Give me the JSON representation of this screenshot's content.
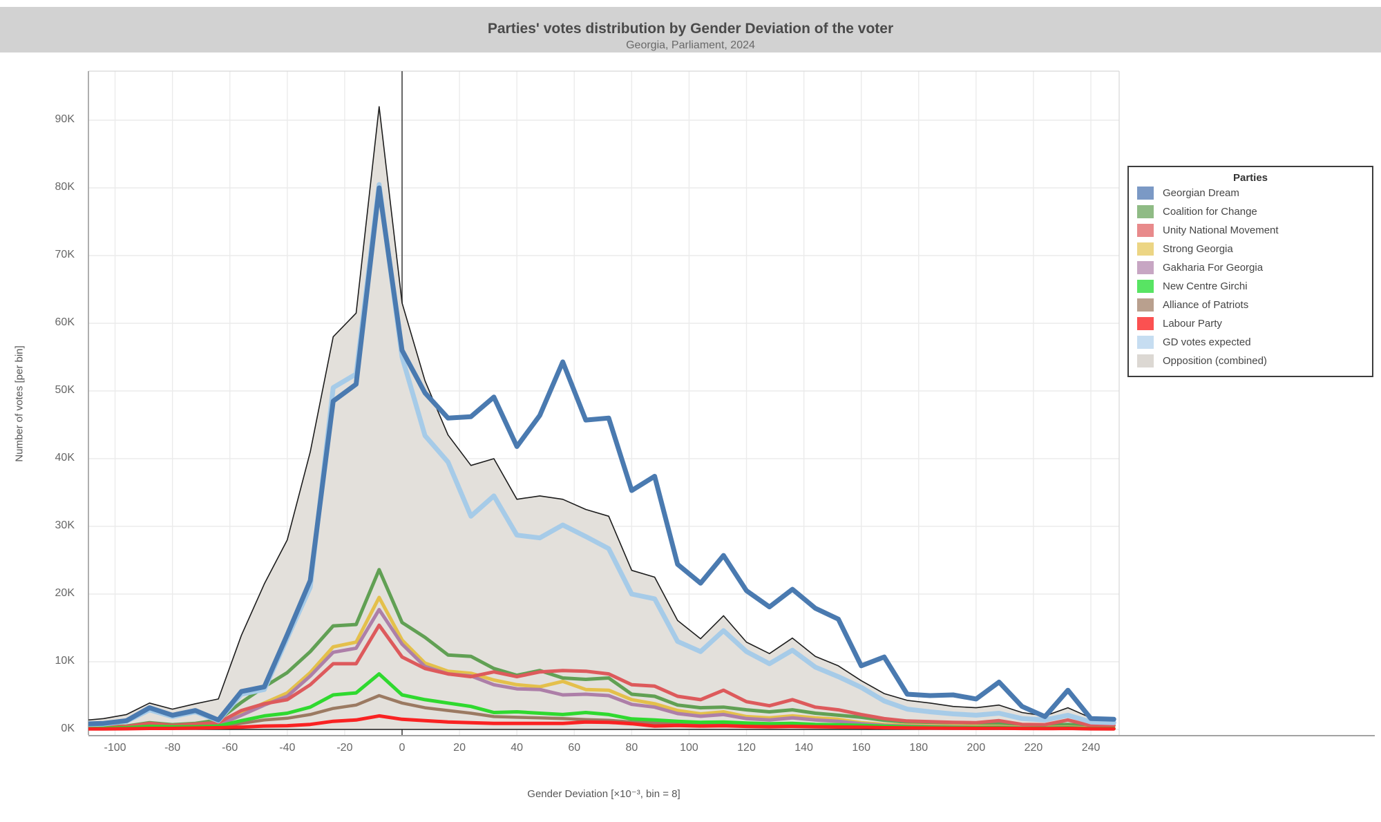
{
  "chart_data": {
    "type": "line",
    "title": "Parties' votes distribution by Gender Deviation of the voter",
    "subtitle": "Georgia, Parliament, 2024",
    "xlabel": "Gender Deviation [×10⁻³, bin = 8]",
    "ylabel": "Number of votes [per bin]",
    "xlim": [
      -116,
      252
    ],
    "ylim": [
      0,
      97
    ],
    "grid": true,
    "legend_position": "right",
    "x_ticks": [
      -100,
      -80,
      -60,
      -40,
      -20,
      0,
      20,
      40,
      60,
      80,
      100,
      120,
      140,
      160,
      180,
      200,
      220,
      240
    ],
    "y_ticks": [
      0,
      10,
      20,
      30,
      40,
      50,
      60,
      70,
      80,
      90
    ],
    "y_tick_suffix": "K",
    "zero_line_x": 0,
    "bins": [
      -112,
      -104,
      -96,
      -88,
      -80,
      -72,
      -64,
      -56,
      -48,
      -40,
      -32,
      -24,
      -16,
      -8,
      0,
      8,
      16,
      24,
      32,
      40,
      48,
      56,
      64,
      72,
      80,
      88,
      96,
      104,
      112,
      120,
      128,
      136,
      144,
      152,
      160,
      168,
      176,
      184,
      192,
      200,
      208,
      216,
      224,
      232,
      240,
      248
    ],
    "units": "thousands of votes",
    "series": [
      {
        "id": "opposition",
        "name": "Opposition (combined)",
        "kind": "area",
        "color": "#e3e0db",
        "stroke": "#1c1c1c",
        "width": 1.6,
        "values": [
          1.3,
          1.6,
          2.2,
          3.9,
          3,
          3.8,
          4.5,
          13.9,
          21.5,
          28,
          41,
          58,
          61.5,
          92,
          63,
          51.5,
          43.5,
          39,
          40,
          34,
          34.5,
          34,
          32.5,
          31.5,
          23.5,
          22.5,
          16.1,
          13.4,
          16.8,
          12.9,
          11.2,
          13.5,
          10.8,
          9.4,
          7.2,
          5.3,
          4.3,
          3.9,
          3.4,
          3.2,
          3.6,
          2.5,
          2,
          3.2,
          1.7,
          1.6
        ]
      },
      {
        "id": "coalition_for_change",
        "name": "Coalition for Change",
        "kind": "line",
        "color": "#61a054",
        "width": 5,
        "values": [
          0.35,
          0.4,
          0.5,
          1,
          0.7,
          0.9,
          1.4,
          4,
          6.3,
          8.4,
          11.5,
          15.3,
          15.5,
          23.6,
          15.8,
          13.6,
          11,
          10.8,
          9,
          8,
          8.7,
          7.6,
          7.4,
          7.6,
          5.2,
          4.9,
          3.6,
          3.2,
          3.3,
          2.9,
          2.6,
          2.9,
          2.4,
          2.1,
          1.8,
          1.35,
          1.1,
          1.05,
          1,
          0.95,
          0.9,
          0.65,
          0.6,
          0.75,
          0.5,
          0.55
        ]
      },
      {
        "id": "strong_georgia",
        "name": "Strong Georgia",
        "kind": "line",
        "color": "#e4c04b",
        "width": 5,
        "values": [
          0.2,
          0.25,
          0.35,
          0.6,
          0.5,
          0.6,
          0.75,
          2.4,
          3.9,
          5.4,
          8.4,
          12.2,
          12.9,
          19.5,
          13.2,
          9.8,
          8.6,
          8.3,
          7.3,
          6.6,
          6.3,
          7.1,
          5.9,
          5.8,
          4.4,
          3.8,
          2.8,
          2.3,
          2.6,
          1.9,
          1.7,
          2,
          1.7,
          1.5,
          1,
          0.75,
          0.62,
          0.55,
          0.5,
          0.45,
          0.45,
          0.28,
          0.28,
          0.35,
          0.2,
          0.18
        ]
      },
      {
        "id": "gakharia_for_georgia",
        "name": "Gakharia For Georgia",
        "kind": "line",
        "color": "#ad7fa8",
        "width": 5,
        "values": [
          0.18,
          0.22,
          0.3,
          0.5,
          0.45,
          0.55,
          0.65,
          2.1,
          3.6,
          4.9,
          7.9,
          11.4,
          12,
          17.7,
          12.6,
          9.3,
          8.2,
          7.9,
          6.6,
          6,
          5.9,
          5.1,
          5.2,
          5,
          3.7,
          3.3,
          2.35,
          1.95,
          2.2,
          1.6,
          1.4,
          1.7,
          1.4,
          1.2,
          0.85,
          0.6,
          0.5,
          0.43,
          0.38,
          0.34,
          0.35,
          0.22,
          0.22,
          0.28,
          0.15,
          0.13
        ]
      },
      {
        "id": "unity_national_movement",
        "name": "Unity National Movement",
        "kind": "line",
        "color": "#dd5a5c",
        "width": 5,
        "values": [
          0.25,
          0.3,
          0.45,
          0.9,
          0.6,
          0.8,
          1,
          2.8,
          3.8,
          4.4,
          6.6,
          9.7,
          9.7,
          15.4,
          10.7,
          9,
          8.2,
          7.8,
          8.5,
          7.8,
          8.5,
          8.7,
          8.6,
          8.2,
          6.6,
          6.4,
          4.9,
          4.4,
          5.8,
          4.1,
          3.5,
          4.4,
          3.3,
          2.9,
          2.2,
          1.6,
          1.25,
          1.15,
          1.05,
          1,
          1.3,
          0.75,
          0.7,
          1.4,
          0.55,
          0.6
        ]
      },
      {
        "id": "alliance_of_patriots",
        "name": "Alliance of Patriots",
        "kind": "line",
        "color": "#9b7a62",
        "width": 4.5,
        "values": [
          0.12,
          0.15,
          0.2,
          0.3,
          0.3,
          0.3,
          0.38,
          0.9,
          1.4,
          1.65,
          2.2,
          3.1,
          3.6,
          5,
          3.9,
          3.2,
          2.8,
          2.4,
          1.9,
          1.8,
          1.7,
          1.6,
          1.45,
          1.35,
          1.1,
          0.95,
          0.8,
          0.68,
          0.75,
          0.6,
          0.55,
          0.6,
          0.5,
          0.45,
          0.4,
          0.3,
          0.26,
          0.23,
          0.2,
          0.18,
          0.18,
          0.12,
          0.12,
          0.14,
          0.09,
          0.08
        ]
      },
      {
        "id": "new_centre_girchi",
        "name": "New Centre Girchi",
        "kind": "line",
        "color": "#2fd92f",
        "width": 5,
        "values": [
          0.15,
          0.2,
          0.25,
          0.45,
          0.4,
          0.4,
          0.5,
          1.3,
          2,
          2.4,
          3.3,
          5.1,
          5.4,
          8.2,
          5.1,
          4.4,
          3.9,
          3.4,
          2.5,
          2.6,
          2.4,
          2.2,
          2.5,
          2.2,
          1.55,
          1.4,
          1.2,
          1.05,
          1.1,
          0.95,
          0.85,
          0.9,
          0.75,
          0.68,
          0.6,
          0.47,
          0.4,
          0.35,
          0.3,
          0.28,
          0.28,
          0.18,
          0.19,
          0.23,
          0.13,
          0.12
        ]
      },
      {
        "id": "labour_party",
        "name": "Labour Party",
        "kind": "line",
        "color": "#f92222",
        "width": 5,
        "values": [
          0.08,
          0.08,
          0.1,
          0.15,
          0.15,
          0.2,
          0.25,
          0.35,
          0.5,
          0.55,
          0.75,
          1.2,
          1.4,
          2,
          1.5,
          1.3,
          1.1,
          1,
          0.9,
          0.9,
          0.9,
          0.9,
          1.1,
          1.05,
          0.85,
          0.5,
          0.58,
          0.5,
          0.55,
          0.45,
          0.4,
          0.45,
          0.4,
          0.36,
          0.33,
          0.26,
          0.23,
          0.2,
          0.18,
          0.16,
          0.18,
          0.14,
          0.12,
          0.15,
          0.09,
          0.08
        ]
      },
      {
        "id": "gd_votes_expected",
        "name": "GD votes expected",
        "kind": "line",
        "color": "#a6cbe8",
        "width": 7,
        "values": [
          0.7,
          0.8,
          1.2,
          2.9,
          1.9,
          2.6,
          1.3,
          5.2,
          5.9,
          13.5,
          21,
          50.5,
          52.5,
          80.5,
          55,
          43.4,
          39.5,
          31.5,
          34.5,
          28.7,
          28.3,
          30.2,
          28.5,
          26.7,
          20,
          19.3,
          13,
          11.5,
          14.6,
          11.5,
          9.7,
          11.7,
          9.2,
          7.8,
          6.2,
          4.2,
          3,
          2.6,
          2.3,
          2.1,
          2.4,
          1.6,
          1.4,
          2.1,
          1.1,
          1
        ]
      },
      {
        "id": "georgian_dream",
        "name": "Georgian Dream",
        "kind": "line",
        "color": "#4a7ab0",
        "width": 7,
        "values": [
          0.8,
          0.9,
          1.3,
          3.2,
          2.1,
          2.8,
          1.4,
          5.6,
          6.3,
          14,
          22,
          48.5,
          51,
          80,
          56,
          49.7,
          46,
          46.2,
          49.1,
          41.8,
          46.4,
          54.3,
          45.7,
          46,
          35.3,
          37.4,
          24.4,
          21.6,
          25.7,
          20.5,
          18.1,
          20.7,
          17.9,
          16.3,
          9.4,
          10.7,
          5.2,
          5,
          5.1,
          4.5,
          7,
          3.4,
          1.9,
          5.8,
          1.6,
          1.5
        ]
      }
    ],
    "legend": {
      "title": "Parties",
      "items": [
        {
          "label": "Georgian Dream",
          "series": "georgian_dream",
          "swatch": "#7b99c5"
        },
        {
          "label": "Coalition for Change",
          "series": "coalition_for_change",
          "swatch": "#8fbb85"
        },
        {
          "label": "Unity National Movement",
          "series": "unity_national_movement",
          "swatch": "#e88a8b"
        },
        {
          "label": "Strong Georgia",
          "series": "strong_georgia",
          "swatch": "#ecd584"
        },
        {
          "label": "Gakharia For Georgia",
          "series": "gakharia_for_georgia",
          "swatch": "#c7a6c3"
        },
        {
          "label": "New Centre Girchi",
          "series": "new_centre_girchi",
          "swatch": "#58e463"
        },
        {
          "label": "Alliance of Patriots",
          "series": "alliance_of_patriots",
          "swatch": "#b9a08e"
        },
        {
          "label": "Labour Party",
          "series": "labour_party",
          "swatch": "#fb5151"
        },
        {
          "label": "GD votes expected",
          "series": "gd_votes_expected",
          "swatch": "#c6ddf1"
        },
        {
          "label": "Opposition (combined)",
          "series": "opposition",
          "swatch": "#dcd8d3"
        }
      ]
    }
  }
}
